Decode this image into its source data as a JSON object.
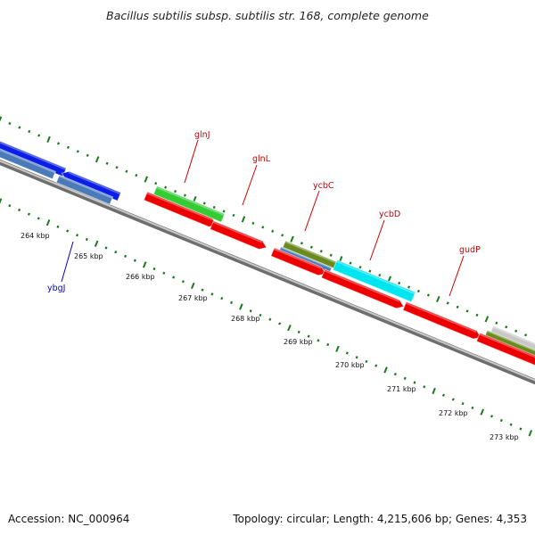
{
  "title": "Bacillus subtilis subsp. subtilis str. 168, complete genome",
  "accession": "Accession: NC_000964",
  "topology": "Topology: circular; Length: 4,215,606 bp; Genes: 4,353",
  "kbp_labels": [
    "264 kbp",
    "265 kbp",
    "266 kbp",
    "267 kbp",
    "268 kbp",
    "269 kbp",
    "270 kbp",
    "271 kbp",
    "272 kbp",
    "273 kbp"
  ],
  "gene_labels": [
    {
      "text": "ybgJ",
      "color": "#0000cc"
    },
    {
      "text": "glnJ",
      "color": "#cc0000"
    },
    {
      "text": "glnL",
      "color": "#cc0000"
    },
    {
      "text": "ycbC",
      "color": "#cc0000"
    },
    {
      "text": "ycbD",
      "color": "#cc0000"
    },
    {
      "text": "gudP",
      "color": "#cc0000"
    }
  ],
  "colors": {
    "backbone": "#8a8a8a",
    "tick_green": "#1a7a1a",
    "blue_gene": "#0a1ee6",
    "steelblue_gene": "#4a7ab8",
    "green_gene": "#33cc33",
    "red_gene": "#ee0000",
    "olive_gene": "#6b8a1e",
    "cyan_gene": "#00e6f0",
    "grey_gene": "#c8c8c8"
  }
}
